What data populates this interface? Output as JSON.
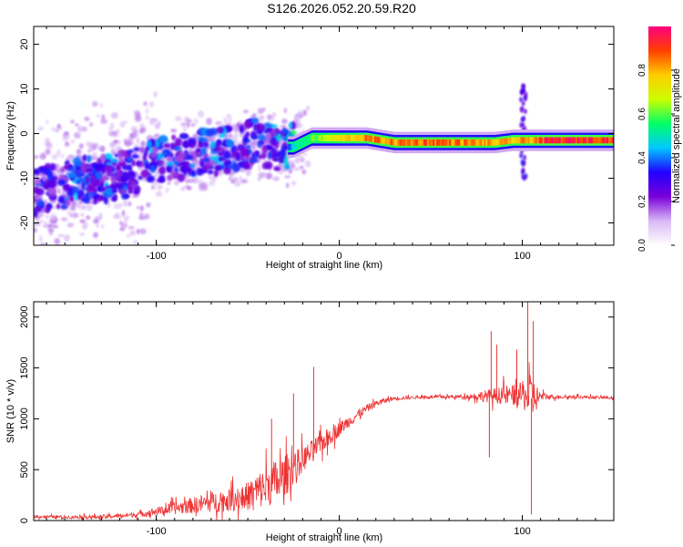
{
  "title": "S126.2026.052.20.59.R20",
  "chart_data": [
    {
      "type": "heatmap",
      "xlabel": "Height of straight line (km)",
      "ylabel": "Frequency (Hz)",
      "xlim": [
        -167,
        150
      ],
      "ylim": [
        -25,
        24
      ],
      "xticks": [
        -100,
        0,
        100
      ],
      "yticks": [
        -20,
        -10,
        0,
        10,
        20
      ],
      "colorbar": {
        "label": "Normalized spectral amplitude",
        "range": [
          0,
          1
        ],
        "ticks": [
          0.0,
          0.2,
          0.4,
          0.6,
          0.8
        ],
        "colors": [
          "#ffffff",
          "#d9b8f5",
          "#7a00d9",
          "#2200ff",
          "#00c8ff",
          "#00ff66",
          "#ccff00",
          "#ffcc00",
          "#ff4000",
          "#ff0080"
        ]
      },
      "ridge": {
        "x": [
          -167,
          -155,
          -145,
          -135,
          -125,
          -115,
          -105,
          -95,
          -85,
          -75,
          -65,
          -55,
          -45,
          -35,
          -28,
          -25,
          -15,
          0,
          15,
          30,
          50,
          70,
          85,
          95,
          105,
          115,
          130,
          150
        ],
        "y": [
          -13,
          -12,
          -11,
          -10,
          -10,
          -9,
          -7,
          -5,
          -5,
          -4,
          -4,
          -3,
          -2,
          -3,
          -3,
          -3,
          -1,
          -1,
          -1,
          -2,
          -2,
          -2,
          -2,
          -1.5,
          -1.5,
          -1.5,
          -1.5,
          -1.5
        ],
        "amplitude": [
          0.3,
          0.3,
          0.35,
          0.3,
          0.35,
          0.3,
          0.35,
          0.35,
          0.3,
          0.35,
          0.35,
          0.3,
          0.3,
          0.35,
          0.4,
          0.5,
          0.6,
          0.75,
          0.85,
          0.85,
          0.9,
          0.85,
          0.8,
          0.8,
          0.85,
          0.95,
          0.95,
          0.95
        ]
      }
    },
    {
      "type": "line",
      "xlabel": "Height of straight line (km)",
      "ylabel": "SNR (10 * v/v)",
      "xlim": [
        -167,
        150
      ],
      "ylim": [
        0,
        2150
      ],
      "xticks": [
        -100,
        0,
        100
      ],
      "yticks": [
        0,
        500,
        1000,
        1500,
        2000
      ],
      "color": "#ee3333",
      "series": [
        {
          "x": [
            -167,
            -150,
            -130,
            -110,
            -100,
            -90,
            -80,
            -70,
            -60,
            -50,
            -45,
            -40,
            -35,
            -30,
            -28,
            -25,
            -20,
            -15,
            -10,
            -5,
            0,
            5,
            10,
            15,
            20,
            25,
            30,
            40,
            50,
            60,
            70,
            80,
            90,
            100,
            105,
            110,
            120,
            130,
            140,
            150
          ],
          "y": [
            40,
            35,
            35,
            60,
            90,
            120,
            150,
            180,
            200,
            240,
            290,
            330,
            380,
            430,
            470,
            520,
            600,
            680,
            760,
            830,
            900,
            970,
            1040,
            1100,
            1150,
            1180,
            1200,
            1210,
            1215,
            1215,
            1220,
            1225,
            1230,
            1235,
            1200,
            1220,
            1215,
            1215,
            1210,
            1205
          ],
          "noise": [
            15,
            15,
            20,
            25,
            40,
            60,
            80,
            100,
            110,
            140,
            180,
            200,
            220,
            200,
            200,
            160,
            130,
            110,
            100,
            90,
            70,
            60,
            50,
            40,
            30,
            25,
            20,
            15,
            15,
            15,
            20,
            60,
            90,
            120,
            250,
            40,
            15,
            15,
            15,
            15
          ]
        }
      ],
      "spikes": [
        {
          "x": -25,
          "y": 1250
        },
        {
          "x": -14,
          "y": 1510
        },
        {
          "x": -37,
          "y": 1000
        },
        {
          "x": 83,
          "y": 1860
        },
        {
          "x": 82,
          "y": 620
        },
        {
          "x": 86,
          "y": 1730
        },
        {
          "x": 103,
          "y": 2150
        },
        {
          "x": 106,
          "y": 1960
        },
        {
          "x": 105,
          "y": 60
        },
        {
          "x": 97,
          "y": 1680
        }
      ]
    }
  ]
}
